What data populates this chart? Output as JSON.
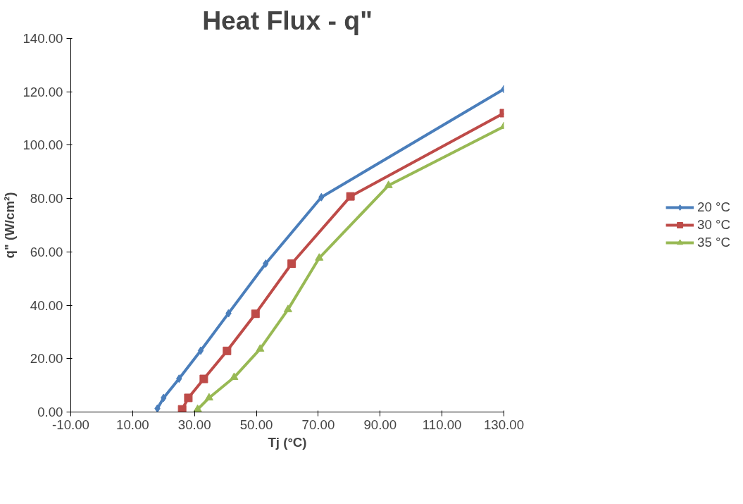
{
  "chart_data": {
    "type": "line",
    "title": "Heat Flux - q\"",
    "xlabel": "Tj (°C)",
    "ylabel": "q\" (W/cm²)",
    "xlim": [
      -10,
      130
    ],
    "xticks": [
      {
        "value": -10,
        "label": "-10.00"
      },
      {
        "value": 10,
        "label": "10.00"
      },
      {
        "value": 30,
        "label": "30.00"
      },
      {
        "value": 50,
        "label": "50.00"
      },
      {
        "value": 70,
        "label": "70.00"
      },
      {
        "value": 90,
        "label": "90.00"
      },
      {
        "value": 110,
        "label": "110.00"
      },
      {
        "value": 130,
        "label": "130.00"
      }
    ],
    "ylim": [
      0,
      140
    ],
    "yticks": [
      {
        "value": 0,
        "label": "0.00"
      },
      {
        "value": 20,
        "label": "20.00"
      },
      {
        "value": 40,
        "label": "40.00"
      },
      {
        "value": 60,
        "label": "60.00"
      },
      {
        "value": 80,
        "label": "80.00"
      },
      {
        "value": 100,
        "label": "100.00"
      },
      {
        "value": 120,
        "label": "120.00"
      },
      {
        "value": 140,
        "label": "140.00"
      }
    ],
    "grid": false,
    "legend": "right",
    "line_style": "solid",
    "series": [
      {
        "name": "20 °C",
        "color": "#4a7ebb",
        "marker": "diamond",
        "x": [
          18,
          20,
          25,
          32,
          41,
          53,
          71,
          130
        ],
        "values": [
          1.3,
          5.3,
          12.5,
          23,
          37,
          55.6,
          80.5,
          121
        ]
      },
      {
        "name": "30 °C",
        "color": "#be4b48",
        "marker": "square",
        "x": [
          26,
          28,
          33,
          40.5,
          49.7,
          61.4,
          80.4,
          130
        ],
        "values": [
          1,
          5.3,
          12.4,
          22.9,
          36.8,
          55.6,
          80.8,
          112
        ]
      },
      {
        "name": "35 °C",
        "color": "#98b954",
        "marker": "triangle",
        "x": [
          31,
          34.7,
          42.8,
          51.2,
          60.2,
          70.3,
          92.7,
          130
        ],
        "values": [
          1,
          5.3,
          13,
          23.6,
          38.4,
          57.7,
          84.9,
          107
        ]
      }
    ]
  }
}
